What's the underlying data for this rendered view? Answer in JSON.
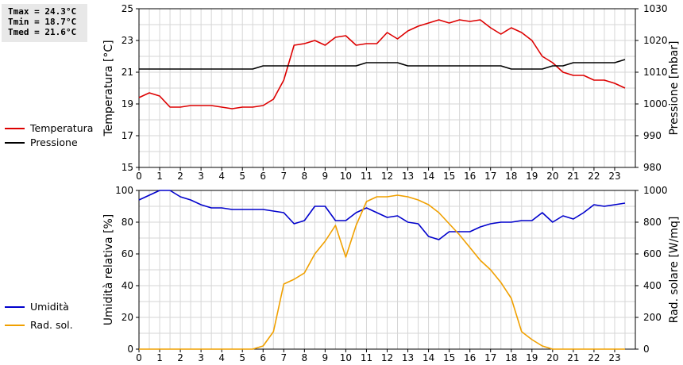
{
  "stats": {
    "tmax": "Tmax = 24.3°C",
    "tmin": "Tmin = 18.7°C",
    "tmed": "Tmed = 21.6°C"
  },
  "chart_data": [
    {
      "type": "line",
      "x_range": [
        0,
        24
      ],
      "x_ticks": [
        0,
        1,
        2,
        3,
        4,
        5,
        6,
        7,
        8,
        9,
        10,
        11,
        12,
        13,
        14,
        15,
        16,
        17,
        18,
        19,
        20,
        21,
        22,
        23
      ],
      "y_left": {
        "label": "Temperatura [°C]",
        "range": [
          15,
          25
        ],
        "ticks": [
          15,
          17,
          19,
          21,
          23,
          25
        ]
      },
      "y_right": {
        "label": "Pressione [mbar]",
        "range": [
          980,
          1030
        ],
        "ticks": [
          980,
          990,
          1000,
          1010,
          1020,
          1030
        ]
      },
      "grid": true,
      "legend_placement": "left",
      "series": [
        {
          "name": "Temperatura",
          "axis": "left",
          "color": "#dd0000",
          "x": [
            0,
            0.5,
            1,
            1.5,
            2,
            2.5,
            3,
            3.5,
            4,
            4.5,
            5,
            5.5,
            6,
            6.5,
            7,
            7.5,
            8,
            8.5,
            9,
            9.5,
            10,
            10.5,
            11,
            11.5,
            12,
            12.5,
            13,
            13.5,
            14,
            14.5,
            15,
            15.5,
            16,
            16.5,
            17,
            17.5,
            18,
            18.5,
            19,
            19.5,
            20,
            20.5,
            21,
            21.5,
            22,
            22.5,
            23,
            23.5
          ],
          "values": [
            19.4,
            19.7,
            19.5,
            18.8,
            18.8,
            18.9,
            18.9,
            18.9,
            18.8,
            18.7,
            18.8,
            18.8,
            18.9,
            19.3,
            20.5,
            22.7,
            22.8,
            23.0,
            22.7,
            23.2,
            23.3,
            22.7,
            22.8,
            22.8,
            23.5,
            23.1,
            23.6,
            23.9,
            24.1,
            24.3,
            24.1,
            24.3,
            24.2,
            24.3,
            23.8,
            23.4,
            23.8,
            23.5,
            23.0,
            22.0,
            21.6,
            21.0,
            20.8,
            20.8,
            20.5,
            20.5,
            20.3,
            20.0
          ]
        },
        {
          "name": "Pressione",
          "axis": "right",
          "color": "#000000",
          "x": [
            0,
            0.5,
            1,
            1.5,
            2,
            2.5,
            3,
            3.5,
            4,
            4.5,
            5,
            5.5,
            6,
            6.5,
            7,
            7.5,
            8,
            8.5,
            9,
            9.5,
            10,
            10.5,
            11,
            11.5,
            12,
            12.5,
            13,
            13.5,
            14,
            14.5,
            15,
            15.5,
            16,
            16.5,
            17,
            17.5,
            18,
            18.5,
            19,
            19.5,
            20,
            20.5,
            21,
            21.5,
            22,
            22.5,
            23,
            23.5
          ],
          "values": [
            1011,
            1011,
            1011,
            1011,
            1011,
            1011,
            1011,
            1011,
            1011,
            1011,
            1011,
            1011,
            1012,
            1012,
            1012,
            1012,
            1012,
            1012,
            1012,
            1012,
            1012,
            1012,
            1013,
            1013,
            1013,
            1013,
            1012,
            1012,
            1012,
            1012,
            1012,
            1012,
            1012,
            1012,
            1012,
            1012,
            1011,
            1011,
            1011,
            1011,
            1012,
            1012,
            1013,
            1013,
            1013,
            1013,
            1013,
            1014
          ]
        }
      ]
    },
    {
      "type": "line",
      "x_range": [
        0,
        24
      ],
      "x_ticks": [
        0,
        1,
        2,
        3,
        4,
        5,
        6,
        7,
        8,
        9,
        10,
        11,
        12,
        13,
        14,
        15,
        16,
        17,
        18,
        19,
        20,
        21,
        22,
        23
      ],
      "y_left": {
        "label": "Umidità relativa [%]",
        "range": [
          0,
          100
        ],
        "ticks": [
          0,
          20,
          40,
          60,
          80,
          100
        ]
      },
      "y_right": {
        "label": "Rad. solare [W/mq]",
        "range": [
          0,
          1000
        ],
        "ticks": [
          0,
          200,
          400,
          600,
          800,
          1000
        ]
      },
      "grid": true,
      "legend_placement": "left",
      "series": [
        {
          "name": "Umidità",
          "axis": "left",
          "color": "#0000cc",
          "x": [
            0,
            0.5,
            1,
            1.5,
            2,
            2.5,
            3,
            3.5,
            4,
            4.5,
            5,
            5.5,
            6,
            6.5,
            7,
            7.5,
            8,
            8.5,
            9,
            9.5,
            10,
            10.5,
            11,
            11.5,
            12,
            12.5,
            13,
            13.5,
            14,
            14.5,
            15,
            15.5,
            16,
            16.5,
            17,
            17.5,
            18,
            18.5,
            19,
            19.5,
            20,
            20.5,
            21,
            21.5,
            22,
            22.5,
            23,
            23.5
          ],
          "values": [
            94,
            97,
            100,
            100,
            96,
            94,
            91,
            89,
            89,
            88,
            88,
            88,
            88,
            87,
            86,
            79,
            81,
            90,
            90,
            81,
            81,
            86,
            89,
            86,
            83,
            84,
            80,
            79,
            71,
            69,
            74,
            74,
            74,
            77,
            79,
            80,
            80,
            81,
            81,
            86,
            80,
            84,
            82,
            86,
            91,
            90,
            91,
            92
          ]
        },
        {
          "name": "Rad. sol.",
          "axis": "right",
          "color": "#f0a000",
          "x": [
            0,
            0.5,
            1,
            1.5,
            2,
            2.5,
            3,
            3.5,
            4,
            4.5,
            5,
            5.5,
            6,
            6.5,
            7,
            7.5,
            8,
            8.5,
            9,
            9.5,
            10,
            10.5,
            11,
            11.5,
            12,
            12.5,
            13,
            13.5,
            14,
            14.5,
            15,
            15.5,
            16,
            16.5,
            17,
            17.5,
            18,
            18.5,
            19,
            19.5,
            20,
            20.5,
            21,
            21.5,
            22,
            22.5,
            23,
            23.5
          ],
          "values": [
            0,
            0,
            0,
            0,
            0,
            0,
            0,
            0,
            0,
            0,
            0,
            0,
            20,
            110,
            410,
            440,
            480,
            600,
            680,
            780,
            580,
            780,
            930,
            960,
            960,
            970,
            960,
            940,
            910,
            860,
            790,
            720,
            640,
            560,
            500,
            420,
            320,
            110,
            60,
            20,
            0,
            0,
            0,
            0,
            0,
            0,
            0,
            0
          ]
        }
      ]
    }
  ]
}
